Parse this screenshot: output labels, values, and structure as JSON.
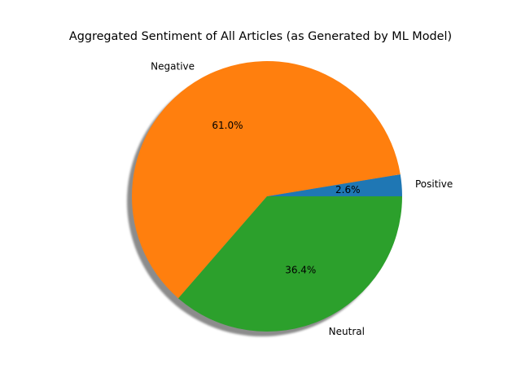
{
  "chart_data": {
    "type": "pie",
    "title": "Aggregated Sentiment of All Articles (as Generated by ML Model)",
    "start_angle_deg": 0,
    "direction": "counterclockwise",
    "shadow": true,
    "slices": [
      {
        "label": "Positive",
        "value": 2.6,
        "pct_label": "2.6%",
        "color": "#1f77b4"
      },
      {
        "label": "Negative",
        "value": 61.0,
        "pct_label": "61.0%",
        "color": "#ff7f0e"
      },
      {
        "label": "Neutral",
        "value": 36.4,
        "pct_label": "36.4%",
        "color": "#2ca02c"
      }
    ]
  }
}
